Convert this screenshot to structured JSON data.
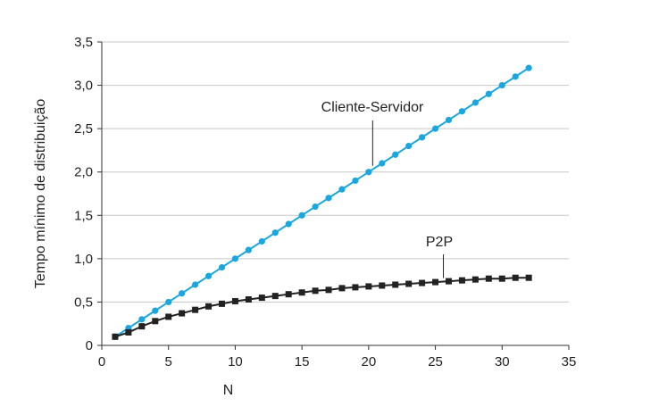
{
  "chart_data": {
    "type": "line",
    "xlabel": "N",
    "ylabel": "Tempo mínimo de distribuição",
    "xlim": [
      0,
      35
    ],
    "ylim": [
      0,
      3.5
    ],
    "xticks": [
      0,
      5,
      10,
      15,
      20,
      25,
      30,
      35
    ],
    "xtick_labels": [
      "0",
      "5",
      "10",
      "15",
      "20",
      "25",
      "30",
      "35"
    ],
    "yticks": [
      0,
      0.5,
      1.0,
      1.5,
      2.0,
      2.5,
      3.0,
      3.5
    ],
    "ytick_labels": [
      "0",
      "0,5",
      "1,0",
      "1,5",
      "2,0",
      "2,5",
      "3,0",
      "3,5"
    ],
    "grid": "horizontal",
    "x": [
      1,
      2,
      3,
      4,
      5,
      6,
      7,
      8,
      9,
      10,
      11,
      12,
      13,
      14,
      15,
      16,
      17,
      18,
      19,
      20,
      21,
      22,
      23,
      24,
      25,
      26,
      27,
      28,
      29,
      30,
      31,
      32
    ],
    "series": [
      {
        "name": "Cliente-Servidor",
        "color": "#1aa7e0",
        "marker": "circle",
        "values": [
          0.1,
          0.2,
          0.3,
          0.4,
          0.5,
          0.6,
          0.7,
          0.8,
          0.9,
          1.0,
          1.1,
          1.2,
          1.3,
          1.4,
          1.5,
          1.6,
          1.7,
          1.8,
          1.9,
          2.0,
          2.1,
          2.2,
          2.3,
          2.4,
          2.5,
          2.6,
          2.7,
          2.8,
          2.9,
          3.0,
          3.1,
          3.2
        ]
      },
      {
        "name": "P2P",
        "color": "#222222",
        "marker": "square",
        "values": [
          0.1,
          0.15,
          0.22,
          0.28,
          0.33,
          0.37,
          0.41,
          0.45,
          0.48,
          0.51,
          0.53,
          0.55,
          0.57,
          0.59,
          0.61,
          0.63,
          0.64,
          0.66,
          0.67,
          0.68,
          0.69,
          0.7,
          0.71,
          0.72,
          0.73,
          0.74,
          0.75,
          0.76,
          0.77,
          0.77,
          0.78,
          0.78
        ]
      }
    ],
    "annotations": [
      {
        "text": "Cliente-Servidor",
        "series": "Cliente-Servidor",
        "at_x": 20.3
      },
      {
        "text": "P2P",
        "series": "P2P",
        "at_x": 25.6
      }
    ]
  }
}
